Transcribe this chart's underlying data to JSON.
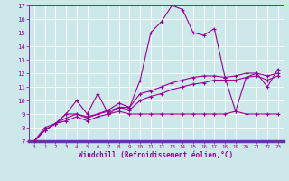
{
  "xlabel": "Windchill (Refroidissement éolien,°C)",
  "ylabel": "",
  "xlim": [
    -0.5,
    23.5
  ],
  "ylim": [
    7,
    17
  ],
  "xticks": [
    0,
    1,
    2,
    3,
    4,
    5,
    6,
    7,
    8,
    9,
    10,
    11,
    12,
    13,
    14,
    15,
    16,
    17,
    18,
    19,
    20,
    21,
    22,
    23
  ],
  "yticks": [
    7,
    8,
    9,
    10,
    11,
    12,
    13,
    14,
    15,
    16,
    17
  ],
  "background_color": "#cce8e8",
  "line_color": "#990099",
  "grid_color": "#b0d8d8",
  "series": [
    [
      7.0,
      8.0,
      8.3,
      9.0,
      10.0,
      9.0,
      10.5,
      9.0,
      9.5,
      9.5,
      11.5,
      15.0,
      15.8,
      17.0,
      16.7,
      15.0,
      14.8,
      15.3,
      11.7,
      9.2,
      11.7,
      12.0,
      11.0,
      12.3
    ],
    [
      7.0,
      7.8,
      8.3,
      9.0,
      9.0,
      8.8,
      9.0,
      9.3,
      9.8,
      9.5,
      10.5,
      10.7,
      11.0,
      11.3,
      11.5,
      11.7,
      11.8,
      11.8,
      11.7,
      11.8,
      12.0,
      12.0,
      11.8,
      12.0
    ],
    [
      7.0,
      7.8,
      8.3,
      8.7,
      9.0,
      8.7,
      9.0,
      9.2,
      9.5,
      9.3,
      10.0,
      10.3,
      10.5,
      10.8,
      11.0,
      11.2,
      11.3,
      11.5,
      11.5,
      11.5,
      11.7,
      11.8,
      11.5,
      11.8
    ],
    [
      7.0,
      7.8,
      8.3,
      8.5,
      8.8,
      8.5,
      8.8,
      9.0,
      9.2,
      9.0,
      9.0,
      9.0,
      9.0,
      9.0,
      9.0,
      9.0,
      9.0,
      9.0,
      9.0,
      9.2,
      9.0,
      9.0,
      9.0,
      9.0
    ]
  ]
}
